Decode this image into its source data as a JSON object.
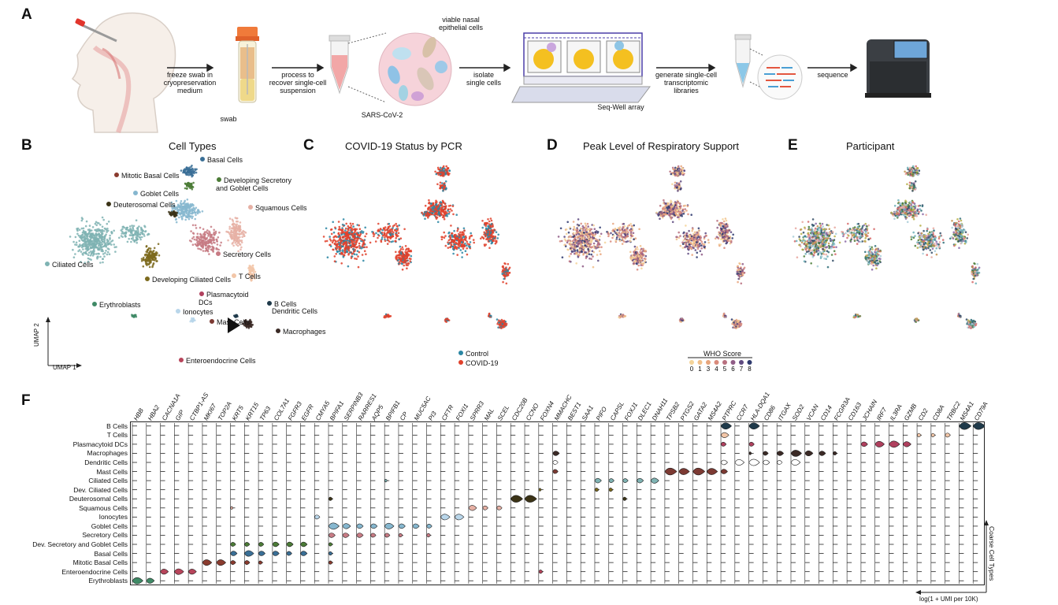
{
  "panels": {
    "a": "A",
    "b": "B",
    "c": "C",
    "d": "D",
    "e": "E",
    "f": "F"
  },
  "workflow": {
    "steps": [
      {
        "text": "freeze swab in\ncryopreservation\nmedium"
      },
      {
        "text": "process to\nrecover single-cell\nsuspension"
      },
      {
        "text": "isolate\nsingle cells"
      },
      {
        "text": "generate single-cell\ntranscriptomic\nlibraries"
      },
      {
        "text": "sequence"
      }
    ],
    "swab_label": "swab",
    "viable_label": "viable nasal\nepithelial cells",
    "sars_label": "SARS-CoV-2",
    "seqwell_label": "Seq-Well array"
  },
  "umap": {
    "cell_types_title": "Cell Types",
    "covid_title": "COVID-19 Status by PCR",
    "support_title": "Peak Level of Respiratory Support",
    "participant_title": "Participant",
    "axis_y": "UMAP 2",
    "axis_x": "UMAP 1",
    "cell_labels": [
      {
        "name": "Basal Cells",
        "color": "#3a6f96"
      },
      {
        "name": "Mitotic Basal Cells",
        "color": "#8a3b2e"
      },
      {
        "name": "Developing Secretory\nand Goblet Cells",
        "color": "#4b7b36"
      },
      {
        "name": "Goblet Cells",
        "color": "#86b7cf"
      },
      {
        "name": "Deuterosomal Cells",
        "color": "#3b3316"
      },
      {
        "name": "Squamous Cells",
        "color": "#e6b0a4"
      },
      {
        "name": "Secretory Cells",
        "color": "#c77b84"
      },
      {
        "name": "Ciliated Cells",
        "color": "#7fb3b3"
      },
      {
        "name": "Developing Ciliated Cells",
        "color": "#7c6a1d"
      },
      {
        "name": "T Cells",
        "color": "#f2c6a8"
      },
      {
        "name": "Erythroblasts",
        "color": "#3f8a66"
      },
      {
        "name": "Plasmacytoid\nDCs",
        "color": "#b0405e"
      },
      {
        "name": "B Cells",
        "color": "#1f3a4a"
      },
      {
        "name": "Dendritic Cells",
        "color": "#ffffff"
      },
      {
        "name": "Ionocytes",
        "color": "#b9d6ea"
      },
      {
        "name": "Mast Cells",
        "color": "#7c3a33"
      },
      {
        "name": "Macrophages",
        "color": "#3b2a26"
      },
      {
        "name": "Enteroendocrine Cells",
        "color": "#b7455b"
      }
    ],
    "covid_legend": [
      {
        "name": "Control",
        "color": "#2a86a3"
      },
      {
        "name": "COVID-19",
        "color": "#e0412b"
      }
    ],
    "who_title": "WHO Score",
    "who_levels": [
      {
        "name": "0",
        "color": "#f4d49a"
      },
      {
        "name": "1",
        "color": "#f0c08a"
      },
      {
        "name": "3",
        "color": "#e7a57c"
      },
      {
        "name": "4",
        "color": "#d98a7b"
      },
      {
        "name": "5",
        "color": "#b8707f"
      },
      {
        "name": "6",
        "color": "#8f5c86"
      },
      {
        "name": "7",
        "color": "#5e4a80"
      },
      {
        "name": "8",
        "color": "#2f3a6e"
      }
    ]
  },
  "violin": {
    "genes": [
      "HBB",
      "HBA2",
      "CACNA1A",
      "GIP",
      "CTBP1-AS",
      "MKI67",
      "TOP2A",
      "KRT5",
      "KRT15",
      "TP63",
      "COL7A1",
      "FGFR3",
      "EGFR",
      "CMYA5",
      "BPIFA1",
      "SERPINB3",
      "RARRES1",
      "AQP5",
      "BPIFB1",
      "CP",
      "MUC5AC",
      "PI3",
      "CFTR",
      "FOXI1",
      "SPRR3",
      "MAL",
      "SCEL",
      "CDC20B",
      "CCNO",
      "FOXN4",
      "MMACHC",
      "BEST1",
      "SAA1",
      "PIFO",
      "CAPSL",
      "FOXJ1",
      "DLEC1",
      "DNAH11",
      "TPSB2",
      "PTGS2",
      "GATA2",
      "MS4A2",
      "PTPRC",
      "CCR7",
      "HLA-DQA1",
      "CD86",
      "ITGAX",
      "SOD2",
      "VCAN",
      "CD14",
      "FCGR3A",
      "CD163",
      "JCHAIN",
      "IRF7",
      "IL3RA",
      "GZMB",
      "CD2",
      "CD8A",
      "TRBC2",
      "MS4A1",
      "CD79A"
    ],
    "rows": [
      "B Cells",
      "T Cells",
      "Plasmacytoid DCs",
      "Macrophages",
      "Dendritic Cells",
      "Mast Cells",
      "Ciliated Cells",
      "Dev. Ciliated Cells",
      "Deuterosomal Cells",
      "Squamous Cells",
      "Ionocytes",
      "Goblet Cells",
      "Secretory Cells",
      "Dev. Secretory and Goblet Cells",
      "Basal Cells",
      "Mitotic Basal Cells",
      "Enteroendocrine Cells",
      "Erythroblasts"
    ],
    "row_colors": [
      "#1f3a4a",
      "#f2c6a8",
      "#b0405e",
      "#3b2a26",
      "#ffffff",
      "#7c3a33",
      "#7fb3b3",
      "#7c6a1d",
      "#3b3316",
      "#e6b0a4",
      "#b9d6ea",
      "#86b7cf",
      "#c77b84",
      "#4b7b36",
      "#3a6f96",
      "#8a3b2e",
      "#b7455b",
      "#3f8a66"
    ],
    "expression": [
      {
        "row": "B Cells",
        "genes": {
          "MS4A1": 0.9,
          "CD79A": 0.9,
          "PTPRC": 0.8,
          "HLA-DQA1": 0.8
        }
      },
      {
        "row": "T Cells",
        "genes": {
          "PTPRC": 0.6,
          "CD2": 0.3,
          "CD8A": 0.3,
          "TRBC2": 0.4
        }
      },
      {
        "row": "Plasmacytoid DCs",
        "genes": {
          "PTPRC": 0.4,
          "HLA-DQA1": 0.4,
          "JCHAIN": 0.5,
          "IRF7": 0.7,
          "IL3RA": 0.8,
          "GZMB": 0.6
        }
      },
      {
        "row": "Macrophages",
        "genes": {
          "MMACHC": 0.5,
          "HLA-DQA1": 0.2,
          "CD86": 0.4,
          "ITGAX": 0.5,
          "SOD2": 0.8,
          "VCAN": 0.6,
          "CD14": 0.5,
          "FCGR3A": 0.3
        }
      },
      {
        "row": "Dendritic Cells",
        "genes": {
          "MMACHC": 0.4,
          "PTPRC": 0.5,
          "CCR7": 0.7,
          "HLA-DQA1": 0.8,
          "CD86": 0.5,
          "ITGAX": 0.4,
          "SOD2": 0.7
        }
      },
      {
        "row": "Mast Cells",
        "genes": {
          "MMACHC": 0.4,
          "TPSB2": 0.9,
          "PTGS2": 0.8,
          "GATA2": 0.9,
          "MS4A2": 0.8,
          "PTPRC": 0.5
        }
      },
      {
        "row": "Ciliated Cells",
        "genes": {
          "PIFO": 0.5,
          "CAPSL": 0.4,
          "FOXJ1": 0.4,
          "DLEC1": 0.5,
          "DNAH11": 0.6,
          "BPIFB1": 0.2
        }
      },
      {
        "row": "Dev. Ciliated Cells",
        "genes": {
          "PIFO": 0.3,
          "FOXN4": 0.2,
          "CAPSL": 0.3
        }
      },
      {
        "row": "Deuterosomal Cells",
        "genes": {
          "CDC20B": 0.9,
          "CCNO": 0.9,
          "BPIFA1": 0.3,
          "FOXJ1": 0.3
        }
      },
      {
        "row": "Squamous Cells",
        "genes": {
          "SPRR3": 0.6,
          "MAL": 0.4,
          "SCEL": 0.4,
          "KRT5": 0.2
        }
      },
      {
        "row": "Ionocytes",
        "genes": {
          "CFTR": 0.7,
          "FOXI1": 0.7,
          "CMYA5": 0.4
        }
      },
      {
        "row": "Goblet Cells",
        "genes": {
          "BPIFA1": 0.8,
          "SERPINB3": 0.6,
          "RARRES1": 0.5,
          "AQP5": 0.5,
          "BPIFB1": 0.7,
          "CP": 0.5,
          "MUC5AC": 0.5,
          "PI3": 0.4
        }
      },
      {
        "row": "Secretory Cells",
        "genes": {
          "BPIFA1": 0.5,
          "SERPINB3": 0.5,
          "RARRES1": 0.5,
          "AQP5": 0.4,
          "BPIFB1": 0.4,
          "CP": 0.3,
          "PI3": 0.3
        }
      },
      {
        "row": "Dev. Secretory and Goblet Cells",
        "genes": {
          "KRT5": 0.4,
          "KRT15": 0.4,
          "TP63": 0.4,
          "COL7A1": 0.5,
          "FGFR3": 0.5,
          "EGFR": 0.5,
          "BPIFA1": 0.3
        }
      },
      {
        "row": "Basal Cells",
        "genes": {
          "KRT5": 0.5,
          "KRT15": 0.7,
          "TP63": 0.5,
          "COL7A1": 0.5,
          "FGFR3": 0.4,
          "EGFR": 0.5,
          "BPIFA1": 0.3
        }
      },
      {
        "row": "Mitotic Basal Cells",
        "genes": {
          "MKI67": 0.7,
          "TOP2A": 0.7,
          "KRT5": 0.4,
          "KRT15": 0.4,
          "TP63": 0.3,
          "BPIFA1": 0.3
        }
      },
      {
        "row": "Enteroendocrine Cells",
        "genes": {
          "CACNA1A": 0.6,
          "GIP": 0.7,
          "CTBP1-AS": 0.6,
          "FOXN4": 0.3
        }
      },
      {
        "row": "Erythroblasts",
        "genes": {
          "HBB": 0.8,
          "HBA2": 0.6
        }
      }
    ],
    "y_axis_label": "Coarse Cell Types",
    "x_axis_label": "log(1 + UMI per 10K)"
  }
}
